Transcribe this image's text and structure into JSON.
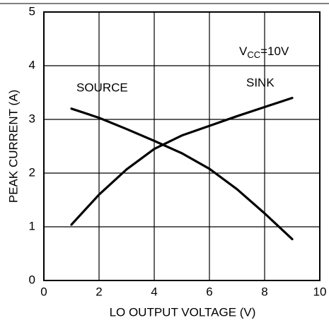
{
  "chart_data": {
    "type": "line",
    "annotation": [
      "V",
      "CC",
      "=10V"
    ],
    "x_label": "LO OUTPUT VOLTAGE (V)",
    "y_label": "PEAK CURRENT (A)",
    "x": [
      1,
      2,
      3,
      4,
      5,
      6,
      7,
      8,
      9
    ],
    "series": [
      {
        "name": "SOURCE",
        "color": "#000000",
        "values": [
          3.2,
          3.03,
          2.82,
          2.6,
          2.37,
          2.08,
          1.7,
          1.25,
          0.77
        ]
      },
      {
        "name": "SINK",
        "color": "#000000",
        "values": [
          1.04,
          1.6,
          2.07,
          2.45,
          2.7,
          2.88,
          3.06,
          3.23,
          3.4
        ]
      }
    ],
    "xlim": [
      0,
      10
    ],
    "xticks": [
      0,
      2,
      4,
      6,
      8,
      10
    ],
    "ylim": [
      0,
      5
    ],
    "yticks": [
      0,
      1,
      2,
      3,
      4,
      5
    ],
    "grid": true
  }
}
